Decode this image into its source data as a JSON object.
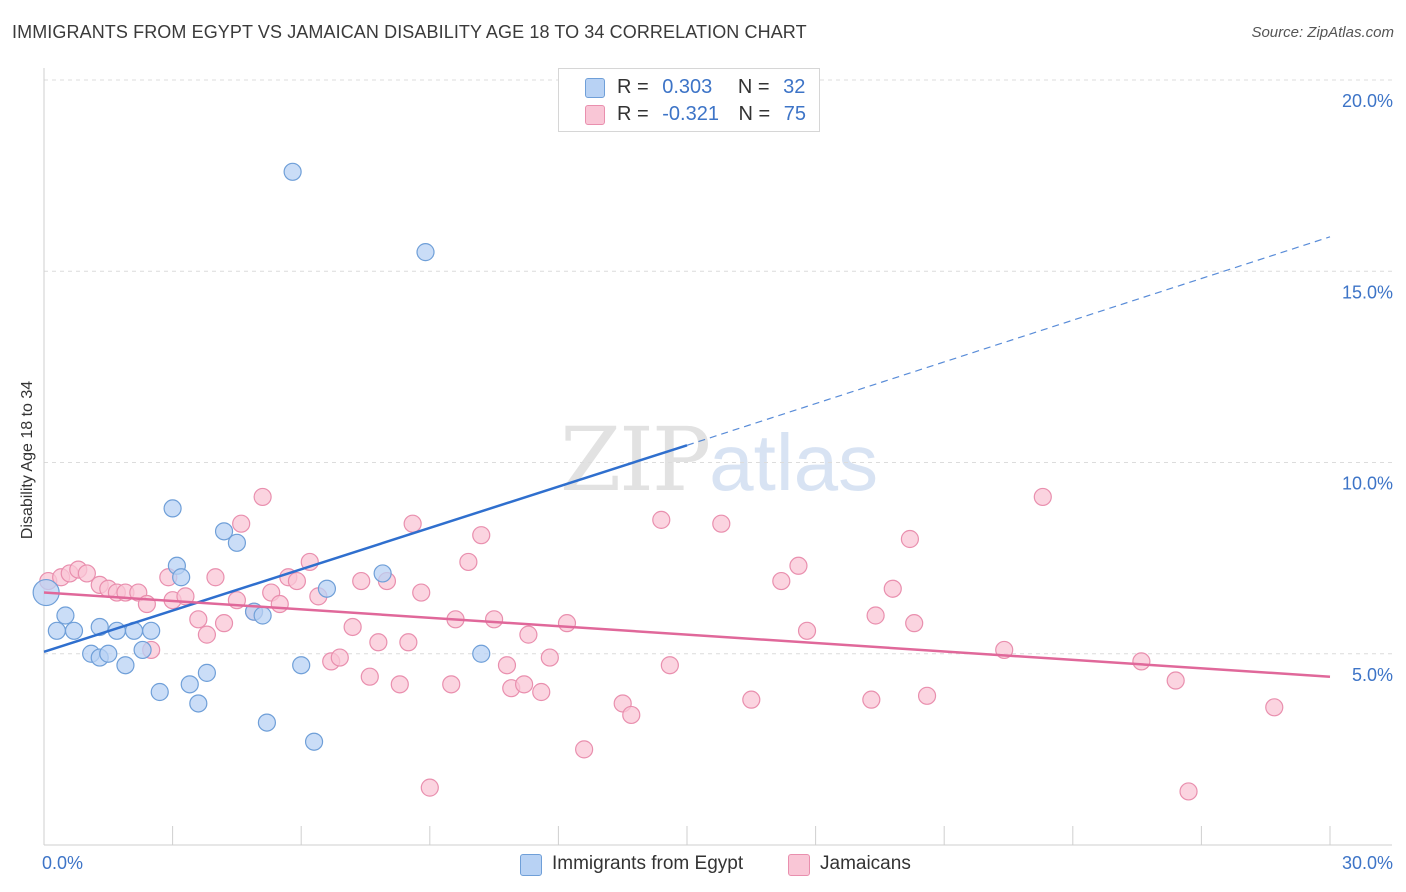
{
  "title": "IMMIGRANTS FROM EGYPT VS JAMAICAN DISABILITY AGE 18 TO 34 CORRELATION CHART",
  "source": "Source: ZipAtlas.com",
  "watermark": {
    "zip": "ZIP",
    "atlas": "atlas"
  },
  "legend": {
    "r_label": "R =",
    "n_label": "N =",
    "egypt": {
      "r": "0.303",
      "n": "32"
    },
    "jamaica": {
      "r": "-0.321",
      "n": "75"
    }
  },
  "colors": {
    "egypt_fill": "#b8d2f4",
    "egypt_stroke": "#6f9fd8",
    "egypt_line": "#2f6fce",
    "jamaica_fill": "#f9c6d6",
    "jamaica_stroke": "#e98fae",
    "jamaica_line": "#e0689a",
    "tick_label": "#3d74c7"
  },
  "chart_data": {
    "type": "scatter",
    "xlabel": "",
    "ylabel": "Disability Age 18 to 34",
    "xlim": [
      0,
      30
    ],
    "ylim": [
      0,
      20
    ],
    "x_tick_labels": [
      "0.0%",
      "30.0%"
    ],
    "y_ticks": [
      5,
      10,
      15,
      20
    ],
    "y_tick_labels": [
      "5.0%",
      "10.0%",
      "15.0%",
      "20.0%"
    ],
    "grid": "horizontal dashed",
    "legend_position": "top-center",
    "series": [
      {
        "name": "Immigrants from Egypt",
        "r": 0.303,
        "n": 32,
        "trend": {
          "x0": 0,
          "y0": 5.05,
          "x1": 15,
          "y1": 10.45,
          "dashed_to_x": 30,
          "dashed_to_y": 15.9
        },
        "points": [
          [
            0.05,
            6.6
          ],
          [
            0.3,
            5.6
          ],
          [
            0.5,
            6.0
          ],
          [
            0.7,
            5.6
          ],
          [
            1.1,
            5.0
          ],
          [
            1.3,
            5.7
          ],
          [
            1.3,
            4.9
          ],
          [
            1.5,
            5.0
          ],
          [
            1.7,
            5.6
          ],
          [
            1.9,
            4.7
          ],
          [
            2.1,
            5.6
          ],
          [
            2.3,
            5.1
          ],
          [
            2.5,
            5.6
          ],
          [
            2.7,
            4.0
          ],
          [
            3.0,
            8.8
          ],
          [
            3.1,
            7.3
          ],
          [
            3.2,
            7.0
          ],
          [
            3.4,
            4.2
          ],
          [
            3.6,
            3.7
          ],
          [
            3.8,
            4.5
          ],
          [
            4.2,
            8.2
          ],
          [
            4.5,
            7.9
          ],
          [
            4.9,
            6.1
          ],
          [
            5.1,
            6.0
          ],
          [
            5.2,
            3.2
          ],
          [
            5.8,
            17.6
          ],
          [
            6.0,
            4.7
          ],
          [
            6.3,
            2.7
          ],
          [
            6.6,
            6.7
          ],
          [
            7.9,
            7.1
          ],
          [
            8.9,
            15.5
          ],
          [
            10.2,
            5.0
          ]
        ]
      },
      {
        "name": "Jamaicans",
        "r": -0.321,
        "n": 75,
        "trend": {
          "x0": 0,
          "y0": 6.6,
          "x1": 30,
          "y1": 4.4
        },
        "points": [
          [
            0.1,
            6.9
          ],
          [
            0.4,
            7.0
          ],
          [
            0.6,
            7.1
          ],
          [
            0.8,
            7.2
          ],
          [
            1.0,
            7.1
          ],
          [
            1.3,
            6.8
          ],
          [
            1.5,
            6.7
          ],
          [
            1.7,
            6.6
          ],
          [
            1.9,
            6.6
          ],
          [
            2.2,
            6.6
          ],
          [
            2.4,
            6.3
          ],
          [
            2.5,
            5.1
          ],
          [
            2.9,
            7.0
          ],
          [
            3.0,
            6.4
          ],
          [
            3.3,
            6.5
          ],
          [
            3.6,
            5.9
          ],
          [
            3.8,
            5.5
          ],
          [
            4.0,
            7.0
          ],
          [
            4.2,
            5.8
          ],
          [
            4.5,
            6.4
          ],
          [
            4.6,
            8.4
          ],
          [
            4.9,
            6.1
          ],
          [
            5.1,
            9.1
          ],
          [
            5.3,
            6.6
          ],
          [
            5.5,
            6.3
          ],
          [
            5.7,
            7.0
          ],
          [
            5.9,
            6.9
          ],
          [
            6.2,
            7.4
          ],
          [
            6.4,
            6.5
          ],
          [
            6.7,
            4.8
          ],
          [
            6.9,
            4.9
          ],
          [
            7.2,
            5.7
          ],
          [
            7.4,
            6.9
          ],
          [
            7.6,
            4.4
          ],
          [
            7.8,
            5.3
          ],
          [
            8.0,
            6.9
          ],
          [
            8.3,
            4.2
          ],
          [
            8.5,
            5.3
          ],
          [
            8.6,
            8.4
          ],
          [
            8.8,
            6.6
          ],
          [
            9.0,
            1.5
          ],
          [
            9.5,
            4.2
          ],
          [
            9.6,
            5.9
          ],
          [
            9.9,
            7.4
          ],
          [
            10.2,
            8.1
          ],
          [
            10.5,
            5.9
          ],
          [
            10.8,
            4.7
          ],
          [
            10.9,
            4.1
          ],
          [
            11.2,
            4.2
          ],
          [
            11.3,
            5.5
          ],
          [
            11.6,
            4.0
          ],
          [
            11.8,
            4.9
          ],
          [
            12.2,
            5.8
          ],
          [
            12.6,
            2.5
          ],
          [
            13.5,
            3.7
          ],
          [
            13.7,
            3.4
          ],
          [
            14.4,
            8.5
          ],
          [
            14.6,
            4.7
          ],
          [
            15.8,
            8.4
          ],
          [
            16.5,
            3.8
          ],
          [
            17.2,
            6.9
          ],
          [
            17.6,
            7.3
          ],
          [
            17.8,
            5.6
          ],
          [
            19.3,
            3.8
          ],
          [
            19.4,
            6.0
          ],
          [
            19.8,
            6.7
          ],
          [
            20.2,
            8.0
          ],
          [
            20.3,
            5.8
          ],
          [
            20.6,
            3.9
          ],
          [
            22.4,
            5.1
          ],
          [
            23.3,
            9.1
          ],
          [
            25.6,
            4.8
          ],
          [
            26.4,
            4.3
          ],
          [
            26.7,
            1.4
          ],
          [
            28.7,
            3.6
          ]
        ]
      }
    ]
  }
}
